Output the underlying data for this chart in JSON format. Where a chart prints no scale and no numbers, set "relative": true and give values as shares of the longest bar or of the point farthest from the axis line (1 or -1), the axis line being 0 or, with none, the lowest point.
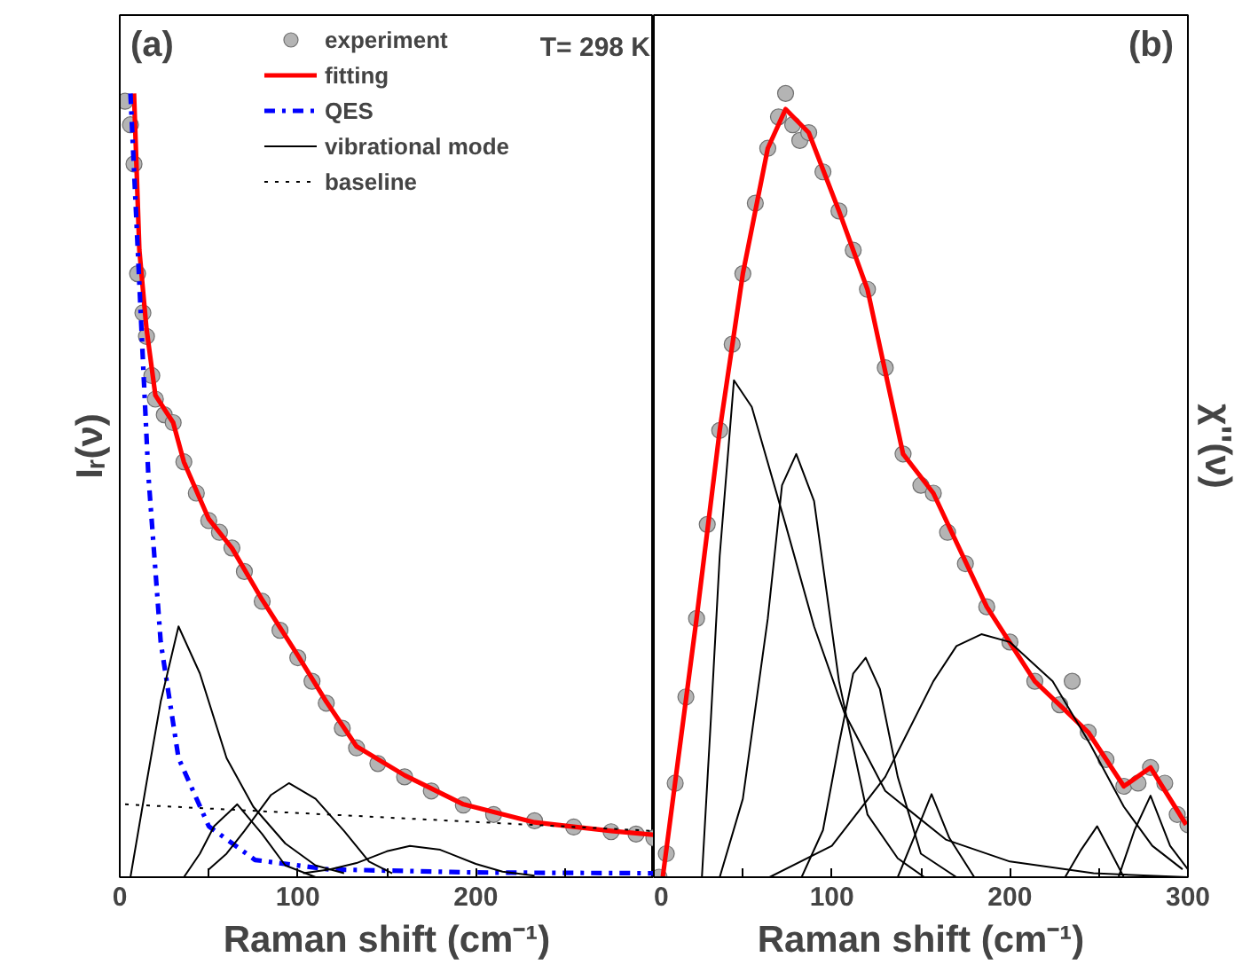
{
  "chart_data": [
    {
      "type": "line",
      "relative": true,
      "xlabel": "Raman shift (cm⁻¹)",
      "ylabel": "Iᵣ(ν)",
      "annotations": [
        "(a)",
        "T= 298 K"
      ],
      "xlim": [
        0,
        300
      ],
      "xticks": [
        0,
        {
          "value": 50,
          "label": null
        },
        100,
        {
          "value": 150,
          "label": null
        },
        200,
        {
          "value": 250,
          "label": null
        },
        {
          "value": 300,
          "label": null
        }
      ],
      "grid": false,
      "legend": "top",
      "series": [
        {
          "name": "experiment",
          "type": "scatter",
          "marker": "circle",
          "color": "#b4b4b4",
          "x": [
            3,
            6,
            8,
            10,
            13,
            15,
            18,
            20,
            25,
            30,
            36,
            43,
            50,
            56,
            63,
            70,
            80,
            90,
            100,
            108,
            116,
            125,
            133,
            145,
            160,
            175,
            193,
            210,
            233,
            255,
            276,
            290,
            300
          ],
          "values": [
            0.99,
            0.96,
            0.91,
            0.77,
            0.72,
            0.69,
            0.64,
            0.61,
            0.59,
            0.58,
            0.53,
            0.49,
            0.455,
            0.44,
            0.42,
            0.39,
            0.352,
            0.315,
            0.28,
            0.25,
            0.222,
            0.19,
            0.165,
            0.145,
            0.128,
            0.11,
            0.092,
            0.08,
            0.072,
            0.064,
            0.058,
            0.055,
            0.05
          ]
        },
        {
          "name": "fitting",
          "color": "#ff0000",
          "line_style": "solid",
          "x": [
            8,
            11,
            15,
            20,
            30,
            36,
            50,
            63,
            80,
            100,
            116,
            133,
            160,
            193,
            233,
            276,
            300
          ],
          "values": [
            1.0,
            0.8,
            0.7,
            0.615,
            0.58,
            0.53,
            0.457,
            0.42,
            0.354,
            0.283,
            0.224,
            0.167,
            0.13,
            0.093,
            0.07,
            0.059,
            0.054
          ]
        },
        {
          "name": "QES",
          "color": "#0000ff",
          "line_style": "dashdot",
          "x": [
            6,
            13,
            16,
            23,
            33,
            50,
            76,
            117,
            200,
            300
          ],
          "values": [
            1.0,
            0.66,
            0.515,
            0.3,
            0.152,
            0.065,
            0.022,
            0.01,
            0.006,
            0.005
          ]
        },
        {
          "name": "vibrational mode",
          "color": "#000000",
          "line_style": "solid",
          "x": [
            6,
            15,
            23,
            33,
            45,
            60,
            75,
            93,
            110,
            126
          ],
          "values": [
            0,
            0.12,
            0.224,
            0.32,
            0.26,
            0.152,
            0.09,
            0.043,
            0.015,
            0.005
          ]
        },
        {
          "color": "#000000",
          "line_style": "solid",
          "x": [
            36,
            45,
            53,
            66,
            80,
            93,
            110
          ],
          "values": [
            0,
            0.03,
            0.065,
            0.093,
            0.055,
            0.015,
            0
          ]
        },
        {
          "color": "#000000",
          "line_style": "solid",
          "x": [
            50,
            60,
            70,
            85,
            95,
            110,
            126,
            140,
            153
          ],
          "values": [
            0.01,
            0.03,
            0.059,
            0.105,
            0.12,
            0.1,
            0.059,
            0.02,
            0.005
          ]
        },
        {
          "color": "#000000",
          "line_style": "solid",
          "x": [
            103,
            118,
            133,
            150,
            163,
            180,
            200,
            215,
            233
          ],
          "values": [
            0.005,
            0.01,
            0.018,
            0.033,
            0.04,
            0.035,
            0.017,
            0.007,
            0.002
          ]
        },
        {
          "name": "baseline",
          "color": "#000000",
          "line_style": "dotted",
          "x": [
            3,
            300
          ],
          "values": [
            0.093,
            0.059
          ]
        }
      ]
    },
    {
      "type": "line",
      "relative": true,
      "xlabel": "Raman shift (cm⁻¹)",
      "ylabel": "χ''(ν)",
      "annotations": [
        "(b)"
      ],
      "xlim": [
        0,
        300
      ],
      "xticks": [
        0,
        {
          "value": 50,
          "label": null
        },
        100,
        {
          "value": 150,
          "label": null
        },
        200,
        {
          "value": 250,
          "label": null
        },
        300
      ],
      "grid": false,
      "series": [
        {
          "type": "scatter",
          "marker": "circle",
          "color": "#b4b4b4",
          "x": [
            3,
            7,
            12,
            18,
            24,
            30,
            37,
            44,
            50,
            57,
            64,
            70,
            74,
            78,
            82,
            87,
            95,
            104,
            112,
            120,
            130,
            140,
            150,
            157,
            165,
            175,
            187,
            200,
            214,
            228,
            235,
            244,
            254,
            264,
            272,
            279,
            287,
            294,
            300
          ],
          "values": [
            0,
            0.03,
            0.12,
            0.23,
            0.33,
            0.45,
            0.57,
            0.68,
            0.77,
            0.86,
            0.93,
            0.97,
            1.0,
            0.96,
            0.94,
            0.95,
            0.9,
            0.85,
            0.8,
            0.75,
            0.65,
            0.54,
            0.5,
            0.49,
            0.44,
            0.4,
            0.345,
            0.3,
            0.25,
            0.22,
            0.25,
            0.185,
            0.15,
            0.116,
            0.12,
            0.14,
            0.12,
            0.08,
            0.067
          ]
        },
        {
          "color": "#ff0000",
          "line_style": "solid",
          "x": [
            5,
            24,
            37,
            50,
            64,
            74,
            87,
            104,
            120,
            140,
            157,
            187,
            214,
            244,
            264,
            279,
            299
          ],
          "values": [
            0,
            0.33,
            0.57,
            0.77,
            0.93,
            0.98,
            0.95,
            0.85,
            0.75,
            0.54,
            0.49,
            0.345,
            0.25,
            0.185,
            0.116,
            0.14,
            0.067
          ]
        },
        {
          "color": "#000000",
          "line_style": "solid",
          "x": [
            27,
            32,
            37,
            45,
            55,
            74,
            90,
            107,
            130,
            164,
            200,
            247,
            300
          ],
          "values": [
            0,
            0.2,
            0.41,
            0.634,
            0.6,
            0.45,
            0.32,
            0.21,
            0.11,
            0.048,
            0.02,
            0.005,
            0
          ]
        },
        {
          "color": "#000000",
          "line_style": "solid",
          "x": [
            37,
            50,
            64,
            72,
            80,
            90,
            104,
            120,
            137,
            152
          ],
          "values": [
            0,
            0.1,
            0.33,
            0.5,
            0.54,
            0.48,
            0.25,
            0.08,
            0.024,
            0
          ]
        },
        {
          "color": "#000000",
          "line_style": "solid",
          "x": [
            83,
            95,
            104,
            112,
            119,
            127,
            137,
            150,
            170
          ],
          "values": [
            0,
            0.06,
            0.17,
            0.26,
            0.28,
            0.24,
            0.128,
            0.03,
            0
          ]
        },
        {
          "color": "#000000",
          "line_style": "solid",
          "x": [
            65,
            100,
            130,
            157,
            170,
            184,
            200,
            224,
            245,
            264,
            280,
            297
          ],
          "values": [
            0,
            0.04,
            0.128,
            0.25,
            0.295,
            0.31,
            0.3,
            0.25,
            0.17,
            0.09,
            0.04,
            0.01
          ]
        },
        {
          "color": "#000000",
          "line_style": "solid",
          "x": [
            137,
            146,
            156,
            166,
            180
          ],
          "values": [
            0,
            0.05,
            0.106,
            0.05,
            0
          ]
        },
        {
          "color": "#000000",
          "line_style": "solid",
          "x": [
            231,
            240,
            249,
            256,
            264
          ],
          "values": [
            0,
            0.035,
            0.065,
            0.035,
            0
          ]
        },
        {
          "color": "#000000",
          "line_style": "solid",
          "x": [
            261,
            270,
            279,
            290,
            300
          ],
          "values": [
            0,
            0.06,
            0.104,
            0.04,
            0.01
          ]
        }
      ]
    }
  ]
}
